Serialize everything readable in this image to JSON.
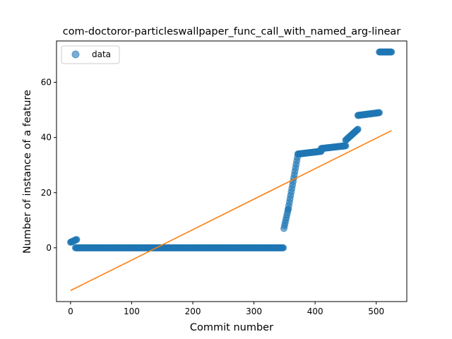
{
  "chart_data": {
    "type": "scatter",
    "title": "com-doctoror-particleswallpaper_func_call_with_named_arg-linear",
    "xlabel": "Commit number",
    "ylabel": "Number of instance of a feature",
    "xlim": [
      -23,
      550
    ],
    "ylim": [
      -19.5,
      75
    ],
    "xticks": [
      0,
      100,
      200,
      300,
      400,
      500
    ],
    "yticks": [
      0,
      20,
      40,
      60
    ],
    "grid": false,
    "legend": {
      "position": "top-left",
      "entries": [
        "data"
      ]
    },
    "colors": {
      "data": "#1f77b4",
      "fit": "#ff7f0e"
    },
    "series": [
      {
        "name": "data",
        "kind": "scatter",
        "segments": [
          {
            "x": [
              0,
              10
            ],
            "y": [
              2,
              3
            ]
          },
          {
            "x": [
              8,
              348
            ],
            "y": [
              0,
              0
            ]
          },
          {
            "x": [
              349,
              356
            ],
            "y": [
              7,
              14
            ]
          },
          {
            "x": [
              356,
              372
            ],
            "y": [
              14,
              34
            ]
          },
          {
            "x": [
              372,
              410
            ],
            "y": [
              34,
              35
            ]
          },
          {
            "x": [
              410,
              450
            ],
            "y": [
              36,
              37
            ]
          },
          {
            "x": [
              450,
              470
            ],
            "y": [
              39,
              43
            ]
          },
          {
            "x": [
              470,
              505
            ],
            "y": [
              48,
              49
            ]
          },
          {
            "x": [
              505,
              525
            ],
            "y": [
              71,
              71
            ]
          }
        ]
      },
      {
        "kind": "line",
        "x": [
          0,
          525
        ],
        "y": [
          -15.5,
          42.5
        ]
      }
    ]
  }
}
